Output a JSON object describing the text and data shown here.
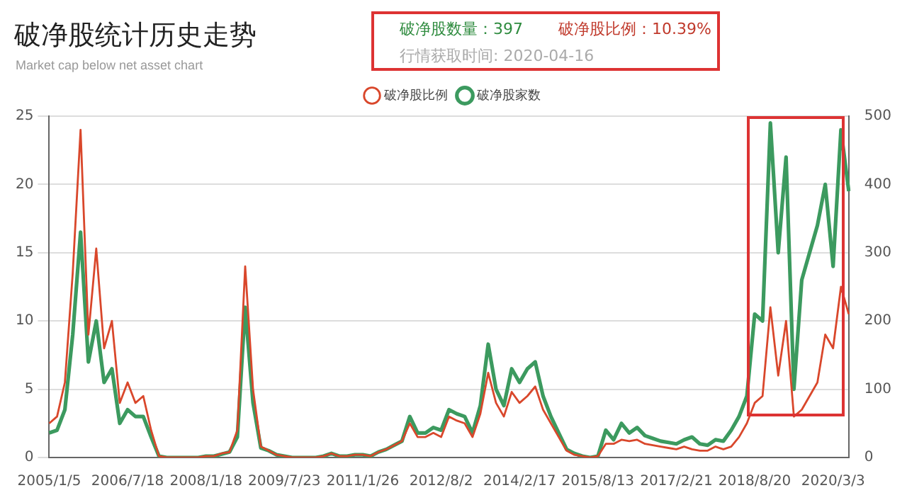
{
  "chart_data": {
    "type": "line",
    "title": "破净股统计历史走势",
    "subtitle": "Market cap below net asset chart",
    "annotations": [
      "破净股数量：397",
      "破净股比例：10.39%",
      "行情获取时间: 2020-04-16"
    ],
    "categories": [
      "2005/1/5",
      null,
      null,
      null,
      null,
      null,
      null,
      null,
      null,
      null,
      "2006/7/18",
      null,
      null,
      null,
      null,
      null,
      null,
      null,
      null,
      null,
      "2008/1/18",
      null,
      null,
      null,
      null,
      null,
      null,
      null,
      null,
      null,
      "2009/7/23",
      null,
      null,
      null,
      null,
      null,
      null,
      null,
      null,
      null,
      "2011/1/26",
      null,
      null,
      null,
      null,
      null,
      null,
      null,
      null,
      null,
      "2012/8/2",
      null,
      null,
      null,
      null,
      null,
      null,
      null,
      null,
      null,
      "2014/2/17",
      null,
      null,
      null,
      null,
      null,
      null,
      null,
      null,
      null,
      "2015/8/13",
      null,
      null,
      null,
      null,
      null,
      null,
      null,
      null,
      null,
      "2017/2/21",
      null,
      null,
      null,
      null,
      null,
      null,
      null,
      null,
      null,
      "2018/8/20",
      null,
      null,
      null,
      null,
      null,
      null,
      null,
      null,
      null,
      "2020/3/3",
      null,
      null
    ],
    "series": [
      {
        "name": "破净股比例",
        "color": "#d9472b",
        "values": [
          2.5,
          3,
          5.5,
          13.5,
          24,
          9,
          15.3,
          8,
          10,
          4,
          5.5,
          4,
          4.5,
          2,
          0.1,
          0,
          0,
          0,
          0,
          0,
          0.1,
          0.1,
          0.3,
          0.4,
          2,
          14,
          5,
          0.8,
          0.5,
          0.2,
          0.1,
          0,
          0,
          0,
          0,
          0.1,
          0.3,
          0.1,
          0.1,
          0.2,
          0.2,
          0.1,
          0.4,
          0.6,
          0.9,
          1.2,
          2.5,
          1.5,
          1.5,
          1.8,
          1.5,
          3,
          2.7,
          2.5,
          1.5,
          3.2,
          6.2,
          4,
          3,
          4.8,
          4,
          4.5,
          5.2,
          3.5,
          2.5,
          1.5,
          0.5,
          0.2,
          0.1,
          0,
          0.1,
          1,
          1,
          1.3,
          1.2,
          1.3,
          1,
          0.9,
          0.8,
          0.7,
          0.6,
          0.8,
          0.6,
          0.5,
          0.5,
          0.8,
          0.6,
          0.8,
          1.5,
          2.5,
          4,
          4.5,
          11,
          6,
          10,
          3,
          3.5,
          4.5,
          5.5,
          9,
          8,
          12.5,
          10.5
        ]
      },
      {
        "name": "破净股家数",
        "color": "#3c9a5f",
        "axis": "y2",
        "values": [
          36,
          40,
          70,
          180,
          330,
          140,
          200,
          110,
          130,
          50,
          70,
          60,
          60,
          30,
          2,
          0,
          0,
          0,
          0,
          0,
          2,
          2,
          5,
          8,
          30,
          220,
          80,
          14,
          10,
          4,
          2,
          0,
          0,
          0,
          0,
          2,
          6,
          2,
          2,
          4,
          4,
          2,
          8,
          12,
          18,
          24,
          60,
          36,
          36,
          44,
          40,
          70,
          64,
          60,
          36,
          76,
          166,
          100,
          76,
          130,
          110,
          130,
          140,
          90,
          60,
          36,
          12,
          6,
          2,
          0,
          2,
          40,
          26,
          50,
          36,
          44,
          32,
          28,
          24,
          22,
          20,
          26,
          30,
          20,
          18,
          26,
          24,
          40,
          60,
          90,
          210,
          200,
          490,
          300,
          440,
          100,
          260,
          300,
          340,
          400,
          280,
          480,
          390
        ]
      }
    ],
    "ylim": [
      0,
      25
    ],
    "yticks": [
      0,
      5,
      10,
      15,
      20,
      25
    ],
    "y2lim": [
      0,
      500
    ],
    "y2ticks": [
      0,
      100,
      200,
      300,
      400,
      500
    ],
    "grid": "y",
    "legend": "top",
    "marker": "none",
    "line_style": "solid"
  }
}
